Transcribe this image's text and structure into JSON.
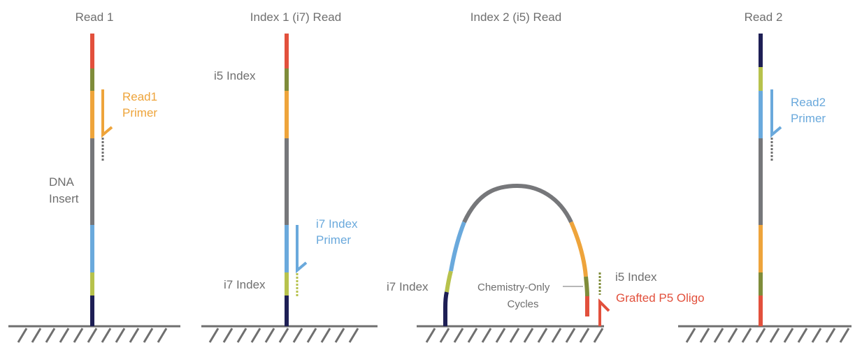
{
  "titles": {
    "read1": "Read 1",
    "index1": "Index 1 (i7) Read",
    "index2": "Index 2 (i5) Read",
    "read2": "Read 2"
  },
  "labels": {
    "read1_primer_line1": "Read1",
    "read1_primer_line2": "Primer",
    "dna_insert_line1": "DNA",
    "dna_insert_line2": "Insert",
    "i5_index_p2": "i5 Index",
    "i7_index_primer_line1": "i7 Index",
    "i7_index_primer_line2": "Primer",
    "i7_index_p2": "i7 Index",
    "i7_index_p3": "i7 Index",
    "chemistry_line1": "Chemistry-Only",
    "chemistry_line2": "Cycles",
    "i5_index_p3": "i5 Index",
    "grafted_p5": "Grafted P5 Oligo",
    "read2_primer_line1": "Read2",
    "read2_primer_line2": "Primer"
  },
  "colors": {
    "red": "#e2503c",
    "olive": "#7f8c3a",
    "orange": "#eea43b",
    "gray": "#76777a",
    "blue": "#6aa9dc",
    "lime": "#b7c24c",
    "navy": "#1e1f55",
    "surface": "#6f6f6f",
    "text": "#6f6f6f"
  }
}
